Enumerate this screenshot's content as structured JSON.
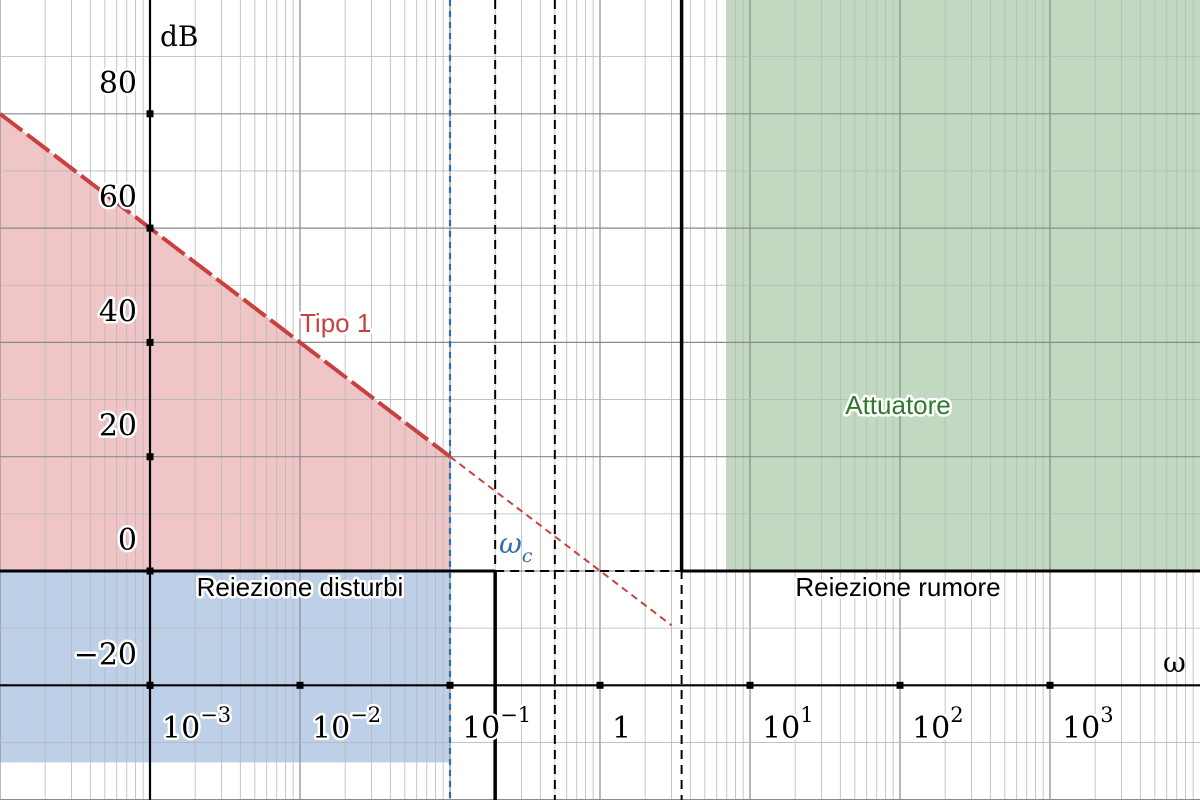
{
  "chart_data": {
    "type": "line",
    "xscale": "log",
    "xlim": [
      0.0001,
      10000
    ],
    "ylim": [
      -30,
      100
    ],
    "xlabel": "ω",
    "ylabel": "dB",
    "grid": true,
    "y_ticks": [
      {
        "value": -20,
        "label": "−20"
      },
      {
        "value": 0,
        "label": "0"
      },
      {
        "value": 20,
        "label": "20"
      },
      {
        "value": 40,
        "label": "40"
      },
      {
        "value": 60,
        "label": "60"
      },
      {
        "value": 80,
        "label": "80"
      }
    ],
    "x_ticks": [
      {
        "value": 0.001,
        "base": "10",
        "exp": "−3"
      },
      {
        "value": 0.01,
        "base": "10",
        "exp": "−2"
      },
      {
        "value": 0.1,
        "base": "10",
        "exp": "−1"
      },
      {
        "value": 1,
        "base": "1",
        "exp": ""
      },
      {
        "value": 10,
        "base": "10",
        "exp": "1"
      },
      {
        "value": 100,
        "base": "10",
        "exp": "2"
      },
      {
        "value": 1000,
        "base": "10",
        "exp": "3"
      }
    ],
    "series": [
      {
        "name": "Tipo 1",
        "style": "dashed",
        "color": "#c94040",
        "x": [
          0.0001,
          0.1,
          3.0
        ],
        "y": [
          80,
          20,
          -9.5
        ]
      }
    ],
    "regions": [
      {
        "name": "Tipo 1",
        "kind": "forbidden-low-frequency",
        "color": "#e8a6a6",
        "x_range": [
          0.0001,
          0.1
        ],
        "upper_line": [
          [
            0.0001,
            80
          ],
          [
            0.1,
            20
          ]
        ],
        "y_floor": 0
      },
      {
        "name": "Reiezione disturbi",
        "kind": "forbidden-low-frequency",
        "color": "#9ab7dc",
        "x_range": [
          0.0001,
          0.1
        ],
        "y_range": [
          -30,
          0
        ]
      },
      {
        "name": "Attuatore",
        "kind": "forbidden-high-frequency",
        "color": "#98bf98",
        "x_range": [
          7,
          10000
        ],
        "y_range": [
          0,
          100
        ]
      },
      {
        "name": "Reiezione rumore",
        "kind": "bound",
        "x_range": [
          3.5,
          10000
        ],
        "y_level": 0
      }
    ],
    "crossover": {
      "label": "ω",
      "subscript": "c",
      "x": 0.1,
      "color": "#2f6fb0"
    },
    "vertical_markers": [
      {
        "x": 0.2,
        "style": "dashed"
      },
      {
        "x": 0.2,
        "style": "solid",
        "y_range": [
          -30,
          0
        ]
      },
      {
        "x": 0.5,
        "style": "dashed"
      },
      {
        "x": 3.5,
        "style": "dashed"
      },
      {
        "x": 3.5,
        "style": "solid",
        "y_range": [
          0,
          100
        ]
      }
    ],
    "horizontal_markers": [
      {
        "y": 0,
        "x_range": [
          0.2,
          3.5
        ],
        "style": "dashed"
      }
    ],
    "colors": {
      "tipo1": "#c94040",
      "tipo1_fill": "#e8a6a6",
      "disturbi_fill": "#9ab7dc",
      "attuatore_fill": "#98bf98",
      "attuatore_text": "#2f7a2f",
      "crossover": "#2f6fb0"
    }
  }
}
